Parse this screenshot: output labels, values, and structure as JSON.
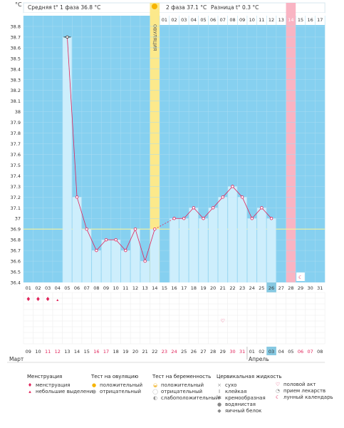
{
  "unit": "°C",
  "header": {
    "phase1": "Средняя t° 1 фаза 36.8 °C",
    "phase2": "2 фаза 37.1 °C",
    "diff": "Разница t° 0.3 °C",
    "ovulation_label": "ОВУЛЯЦИЯ"
  },
  "cycle_days": [
    "01",
    "02",
    "03",
    "04",
    "05",
    "06",
    "07",
    "08",
    "09",
    "10",
    "11",
    "12",
    "13",
    "14",
    "15",
    "16",
    "17",
    "18",
    "19",
    "20",
    "21",
    "22",
    "23",
    "24",
    "25",
    "26",
    "27",
    "28",
    "29",
    "30",
    "31"
  ],
  "top_cycle_days_phase2": [
    "01",
    "02",
    "03",
    "04",
    "05",
    "06",
    "07",
    "08",
    "09",
    "10",
    "11",
    "12",
    "13",
    "14",
    "15",
    "16",
    "17"
  ],
  "chart_data": {
    "type": "line",
    "ylabel": "°C",
    "ylim": [
      36.4,
      38.8
    ],
    "yticks": [
      "36.4",
      "36.5",
      "36.6",
      "36.7",
      "36.8",
      "36.9",
      "37",
      "37.1",
      "37.2",
      "37.3",
      "37.4",
      "37.5",
      "37.6",
      "37.7",
      "37.8",
      "37.9",
      "38",
      "38.1",
      "38.2",
      "38.3",
      "38.4",
      "38.5",
      "38.6",
      "38.7",
      "38.8"
    ],
    "coverline": 36.9,
    "ovulation_day": 14,
    "x": [
      5,
      6,
      7,
      8,
      9,
      10,
      11,
      12,
      13,
      14,
      15,
      16,
      17,
      18,
      19,
      20,
      21,
      22,
      23,
      24,
      25,
      26
    ],
    "values": [
      38.7,
      37.2,
      36.9,
      36.7,
      36.8,
      36.8,
      36.7,
      36.9,
      36.6,
      36.9,
      null,
      37.0,
      37.0,
      37.1,
      37.0,
      37.1,
      37.2,
      37.3,
      37.2,
      37.0,
      37.1,
      37.0
    ],
    "temp_labels": [
      "36.4"
    ]
  },
  "highlights": {
    "today_col": 26,
    "menstr_start_col": 28,
    "lunar_col": 29
  },
  "menstruation_marks": [
    1,
    2,
    3,
    4
  ],
  "menstruation_heavy": [
    1,
    2,
    3
  ],
  "intercourse_col": 21,
  "calendar": {
    "dates": [
      "09",
      "10",
      "11",
      "12",
      "13",
      "14",
      "15",
      "16",
      "17",
      "18",
      "19",
      "20",
      "21",
      "22",
      "23",
      "24",
      "25",
      "26",
      "27",
      "28",
      "29",
      "30",
      "31",
      "01",
      "02",
      "03",
      "04",
      "05",
      "06",
      "07",
      "08"
    ],
    "red": [
      2,
      3,
      7,
      8,
      14,
      15,
      21,
      22,
      28,
      29
    ],
    "month1": "Март",
    "month2": "Апрель",
    "today_date_col": 26
  },
  "legend": {
    "menstr": {
      "title": "Менструация",
      "items": [
        "менструация",
        "небольшие выделения"
      ]
    },
    "ovtest": {
      "title": "Тест на овуляцию",
      "items": [
        "положительный",
        "отрицательный"
      ]
    },
    "pregtest": {
      "title": "Тест на беременность",
      "items": [
        "положительный",
        "отрицательный",
        "слабоположительный"
      ]
    },
    "fluid": {
      "title": "Цервикальная жидкость",
      "items": [
        "сухо",
        "клейкая",
        "кремообразная",
        "водянистая",
        "яичный белок"
      ]
    },
    "other": {
      "items": [
        "половой акт",
        "прием лекарств",
        "лунный календарь"
      ]
    }
  },
  "colors": {
    "sky": "#86d0f0",
    "bar": "#cdeefc",
    "line": "#e0235a",
    "ovu": "#fce98b",
    "menstr": "#f9b4c3",
    "today": "#86c9e2"
  }
}
